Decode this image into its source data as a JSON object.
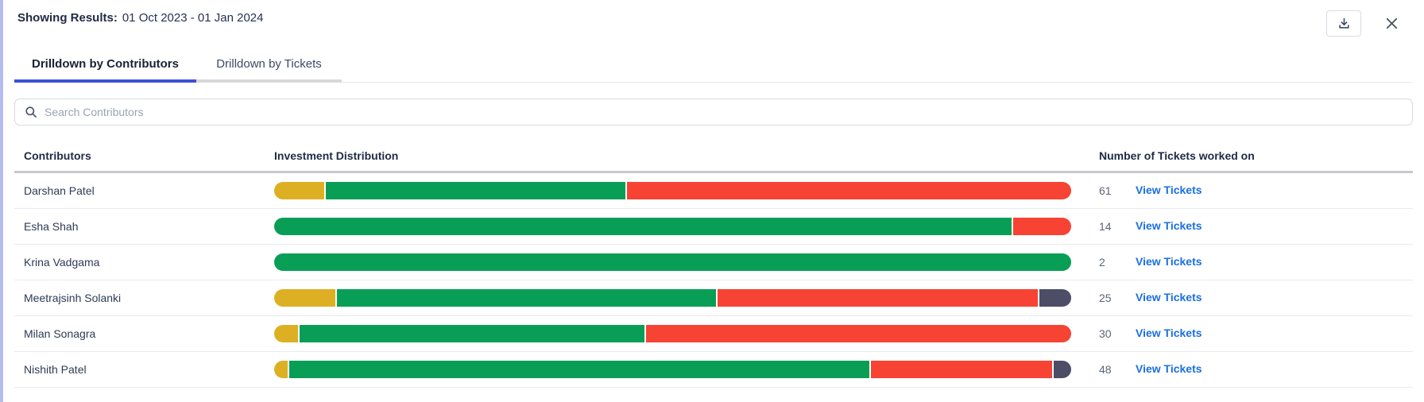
{
  "header": {
    "label": "Showing Results:",
    "value": "01 Oct 2023 - 01 Jan 2024"
  },
  "tabs": [
    {
      "id": "contributors",
      "label": "Drilldown by Contributors",
      "active": true
    },
    {
      "id": "tickets",
      "label": "Drilldown by Tickets",
      "active": false
    }
  ],
  "search": {
    "placeholder": "Search Contributors",
    "value": ""
  },
  "table": {
    "columns": [
      "Contributors",
      "Investment Distribution",
      "Number of Tickets worked on"
    ],
    "view_tickets_label": "View Tickets",
    "rows": [
      {
        "name": "Darshan Patel",
        "tickets": "61",
        "segments": [
          {
            "color": "yellow",
            "pct": 6.3
          },
          {
            "color": "green",
            "pct": 37.7
          },
          {
            "color": "red",
            "pct": 56.0
          }
        ]
      },
      {
        "name": "Esha Shah",
        "tickets": "14",
        "segments": [
          {
            "color": "green",
            "pct": 92.7
          },
          {
            "color": "red",
            "pct": 7.3
          }
        ]
      },
      {
        "name": "Krina Vadgama",
        "tickets": "2",
        "segments": [
          {
            "color": "green",
            "pct": 100
          }
        ]
      },
      {
        "name": "Meetrajsinh Solanki",
        "tickets": "25",
        "segments": [
          {
            "color": "yellow",
            "pct": 7.7
          },
          {
            "color": "green",
            "pct": 47.9
          },
          {
            "color": "red",
            "pct": 40.4
          },
          {
            "color": "slate",
            "pct": 4.0
          }
        ]
      },
      {
        "name": "Milan Sonagra",
        "tickets": "30",
        "segments": [
          {
            "color": "yellow",
            "pct": 3.0
          },
          {
            "color": "green",
            "pct": 43.4
          },
          {
            "color": "red",
            "pct": 53.6
          }
        ]
      },
      {
        "name": "Nishith Patel",
        "tickets": "48",
        "segments": [
          {
            "color": "yellow",
            "pct": 1.7
          },
          {
            "color": "green",
            "pct": 73.2
          },
          {
            "color": "red",
            "pct": 22.9
          },
          {
            "color": "slate",
            "pct": 2.2
          }
        ]
      }
    ]
  },
  "colors": {
    "yellow": "#ddb024",
    "green": "#089e56",
    "red": "#f64334",
    "slate": "#4d4d68",
    "accent_blue": "#3d51d4",
    "link_blue": "#1a6fe0"
  }
}
